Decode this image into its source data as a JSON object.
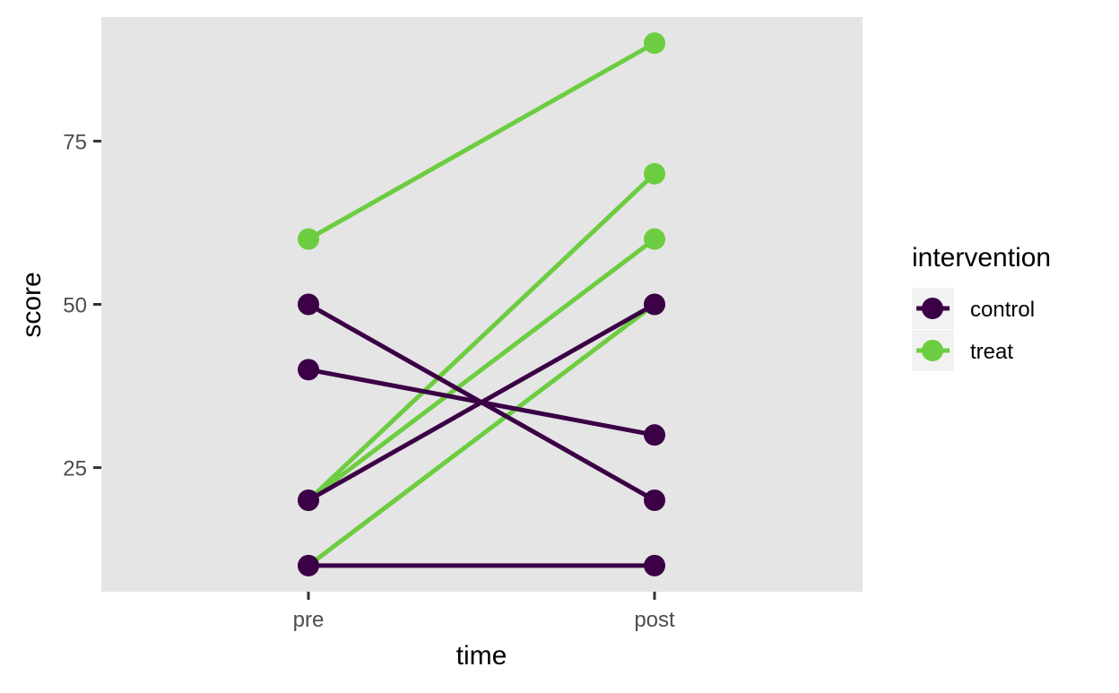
{
  "chart_data": {
    "type": "line",
    "title": "",
    "xlabel": "time",
    "ylabel": "score",
    "categories": [
      "pre",
      "post"
    ],
    "yticks": [
      25,
      50,
      75
    ],
    "ylim": [
      6.0,
      94.0
    ],
    "grid": false,
    "panel_background": "#e5e5e5",
    "legend": {
      "title": "intervention",
      "position": "right",
      "entries": [
        {
          "label": "control",
          "color": "#3b0046"
        },
        {
          "label": "treat",
          "color": "#6ccd40"
        }
      ]
    },
    "series": [
      {
        "group": "treat",
        "values": [
          60,
          90
        ]
      },
      {
        "group": "treat",
        "values": [
          20,
          70
        ]
      },
      {
        "group": "treat",
        "values": [
          20,
          60
        ]
      },
      {
        "group": "treat",
        "values": [
          10,
          50
        ]
      },
      {
        "group": "control",
        "values": [
          10,
          10
        ]
      },
      {
        "group": "control",
        "values": [
          50,
          20
        ]
      },
      {
        "group": "control",
        "values": [
          40,
          30
        ]
      },
      {
        "group": "control",
        "values": [
          20,
          50
        ]
      }
    ]
  }
}
